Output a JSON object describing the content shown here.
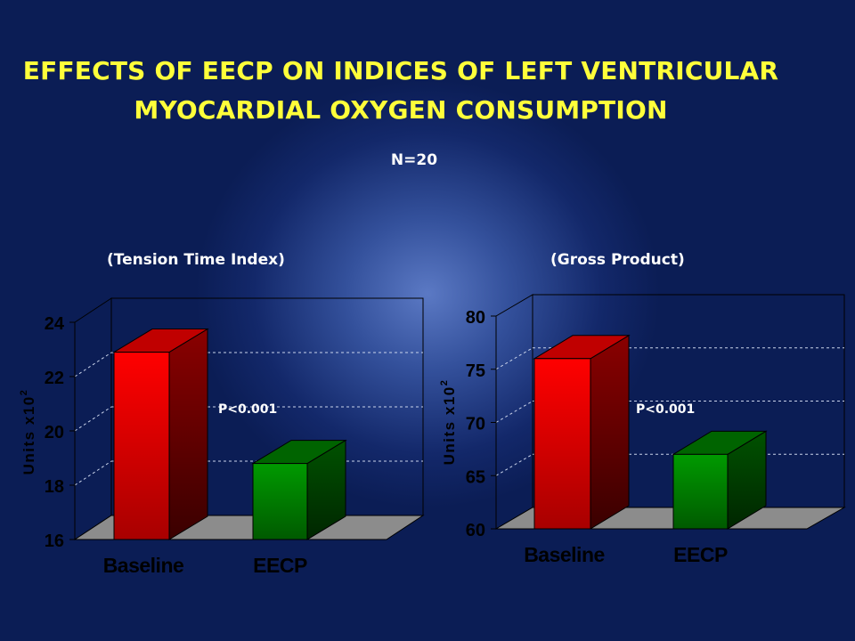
{
  "slide": {
    "title_line1": "EFFECTS OF EECP ON INDICES OF LEFT VENTRICULAR",
    "title_line2": "MYOCARDIAL OXYGEN CONSUMPTION",
    "n_label": "N=20"
  },
  "colors": {
    "baseline": "#e00000",
    "eecp": "#008a00",
    "title": "#ffff3a",
    "axis_text": "#000000"
  },
  "chart_data": [
    {
      "type": "bar",
      "title": "(Tension Time Index)",
      "categories": [
        "Baseline",
        "EECP"
      ],
      "values": [
        22.9,
        18.8
      ],
      "ylabel": "Units x10",
      "ylabel_sup": "2",
      "ylim": [
        16,
        24
      ],
      "yticks": [
        16,
        18,
        20,
        22,
        24
      ],
      "annotation": "P<0.001",
      "grid": true
    },
    {
      "type": "bar",
      "title": "(Gross Product)",
      "categories": [
        "Baseline",
        "EECP"
      ],
      "values": [
        76,
        67
      ],
      "ylabel": "Units x10",
      "ylabel_sup": "2",
      "ylim": [
        60,
        80
      ],
      "yticks": [
        60,
        65,
        70,
        75,
        80
      ],
      "annotation": "P<0.001",
      "grid": true
    }
  ]
}
